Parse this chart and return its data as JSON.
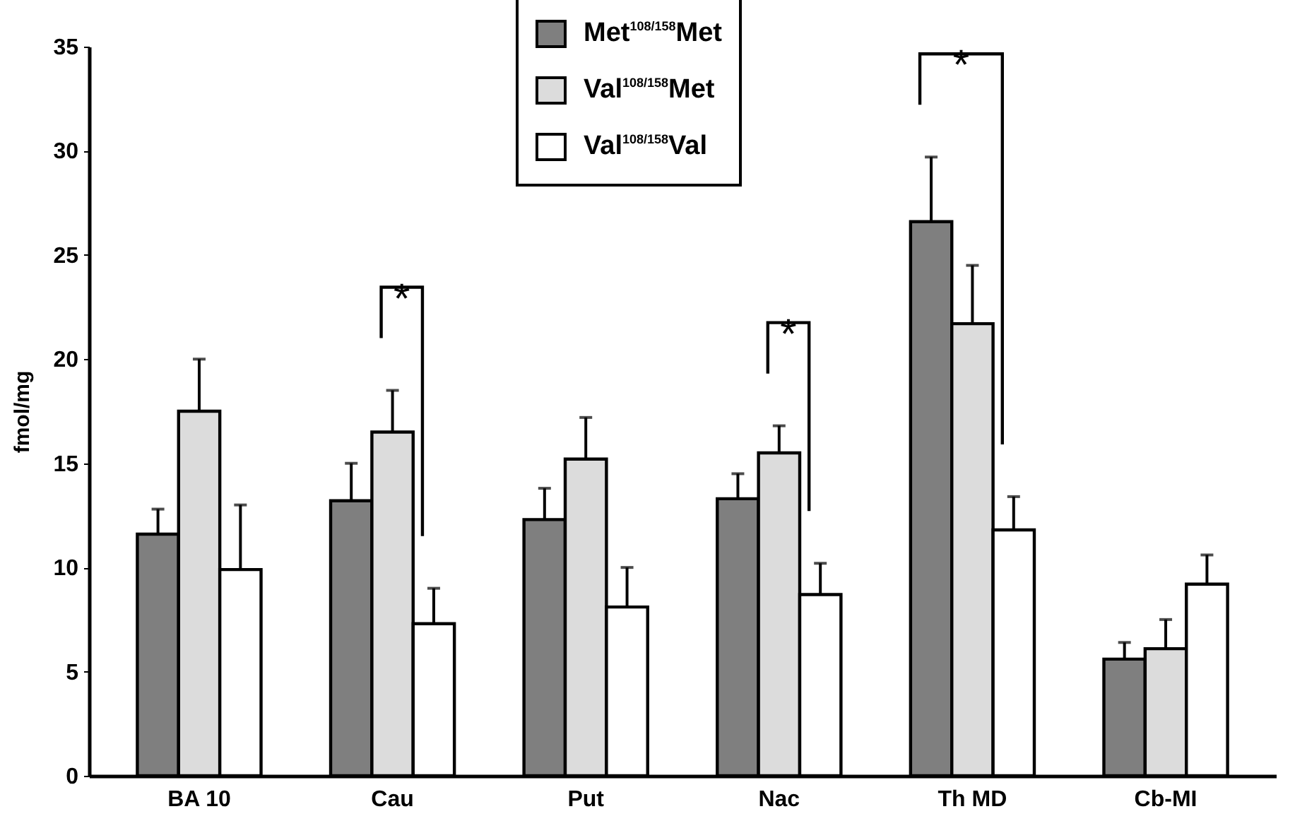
{
  "chart_data": {
    "type": "bar",
    "ylabel": "fmol/mg",
    "categories": [
      "BA 10",
      "Cau",
      "Put",
      "Nac",
      "Th MD",
      "Cb-MI"
    ],
    "series": [
      {
        "name": "Met$^{108/158}$Met",
        "color": "#7f7f7f",
        "values": [
          11.6,
          13.2,
          12.3,
          13.3,
          26.6,
          5.6
        ],
        "errors": [
          [
            11.6,
            12.8
          ],
          [
            13.2,
            15.0
          ],
          [
            12.3,
            13.8
          ],
          [
            13.3,
            14.5
          ],
          [
            26.6,
            29.7
          ],
          [
            5.6,
            6.4
          ]
        ]
      },
      {
        "name": "Val$^{108/158}$Met",
        "color": "#dcdcdc",
        "values": [
          17.5,
          16.5,
          15.2,
          15.5,
          21.7,
          6.1
        ],
        "errors": [
          [
            17.5,
            20.0
          ],
          [
            16.5,
            18.5
          ],
          [
            15.2,
            17.2
          ],
          [
            15.5,
            16.8
          ],
          [
            21.7,
            24.5
          ],
          [
            6.1,
            7.5
          ]
        ]
      },
      {
        "name": "Val$^{108/158}$Val",
        "color": "#ffffff",
        "values": [
          9.9,
          7.3,
          8.1,
          8.7,
          11.8,
          9.2
        ],
        "errors": [
          [
            9.9,
            13.0
          ],
          [
            7.3,
            9.0
          ],
          [
            8.1,
            10.0
          ],
          [
            8.7,
            10.2
          ],
          [
            11.8,
            13.4
          ],
          [
            9.2,
            10.6
          ]
        ]
      }
    ],
    "ylim": [
      0,
      35
    ],
    "yticks": [
      0,
      5,
      10,
      15,
      20,
      25,
      30,
      35
    ],
    "grid": false,
    "legend": "top",
    "annotations": [
      "*",
      "*",
      "*"
    ]
  }
}
